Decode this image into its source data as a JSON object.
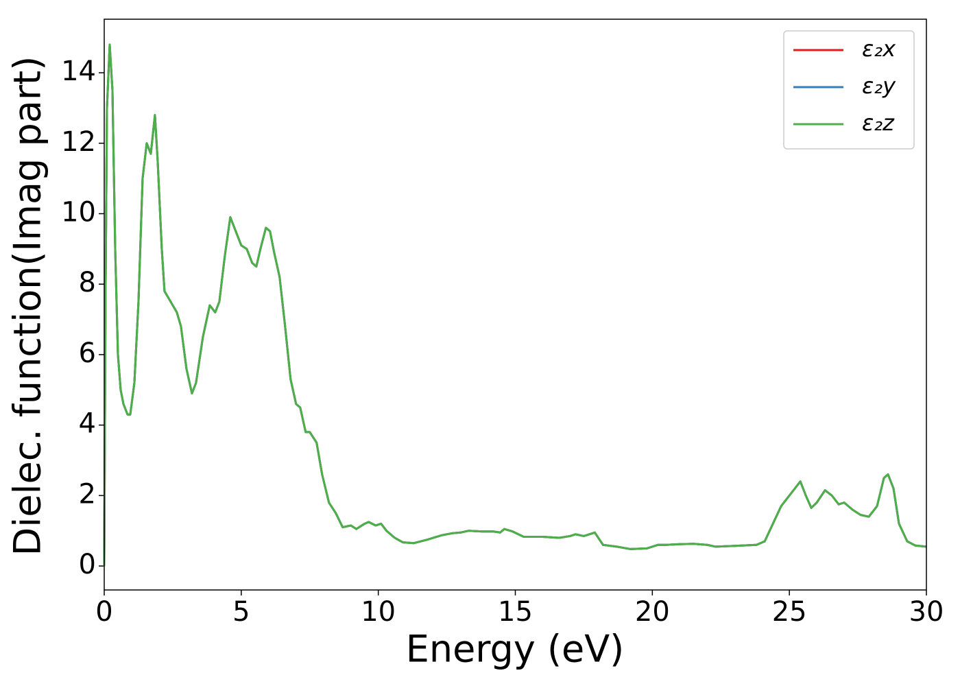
{
  "chart_data": {
    "type": "line",
    "xlabel": "Energy (eV)",
    "ylabel": "Dielec. function(Imag part)",
    "xlim": [
      0,
      30
    ],
    "ylim": [
      -0.68,
      15.52
    ],
    "xticks": [
      0,
      5,
      10,
      15,
      20,
      25,
      30
    ],
    "yticks": [
      0,
      2,
      4,
      6,
      8,
      10,
      12,
      14
    ],
    "legend": "upper right",
    "x": [
      0,
      0.05,
      0.1,
      0.2,
      0.3,
      0.4,
      0.5,
      0.6,
      0.7,
      0.85,
      0.95,
      1.1,
      1.25,
      1.4,
      1.55,
      1.7,
      1.85,
      1.95,
      2.1,
      2.2,
      2.35,
      2.5,
      2.65,
      2.8,
      3.0,
      3.2,
      3.35,
      3.6,
      3.85,
      4.05,
      4.2,
      4.4,
      4.6,
      4.8,
      5.0,
      5.2,
      5.4,
      5.55,
      5.7,
      5.9,
      6.05,
      6.2,
      6.4,
      6.6,
      6.8,
      7.0,
      7.15,
      7.35,
      7.5,
      7.75,
      7.95,
      8.2,
      8.45,
      8.7,
      9.0,
      9.2,
      9.5,
      9.65,
      9.9,
      10.1,
      10.3,
      10.6,
      10.9,
      11.3,
      11.8,
      12.3,
      12.7,
      13.0,
      13.3,
      13.8,
      14.2,
      14.45,
      14.6,
      14.9,
      15.3,
      16.0,
      16.6,
      17.0,
      17.2,
      17.5,
      17.9,
      18.2,
      18.7,
      19.2,
      19.8,
      20.2,
      20.5,
      21.0,
      21.5,
      22.0,
      22.3,
      23.0,
      23.8,
      24.1,
      24.4,
      24.7,
      25.0,
      25.4,
      25.6,
      25.8,
      26.0,
      26.3,
      26.55,
      26.8,
      27.0,
      27.3,
      27.6,
      27.9,
      28.2,
      28.45,
      28.6,
      28.8,
      29.0,
      29.3,
      29.6,
      30.0
    ],
    "series": [
      {
        "name": "ε₂x",
        "color": "#e41a1c",
        "values": [
          0,
          8,
          13,
          14.8,
          13.5,
          9,
          6,
          5,
          4.6,
          4.3,
          4.3,
          5.2,
          7.5,
          11,
          12,
          11.7,
          12.8,
          11.5,
          9,
          7.8,
          7.6,
          7.4,
          7.2,
          6.8,
          5.6,
          4.9,
          5.2,
          6.5,
          7.4,
          7.2,
          7.5,
          8.8,
          9.9,
          9.5,
          9.1,
          9.0,
          8.6,
          8.5,
          9.0,
          9.6,
          9.5,
          8.9,
          8.2,
          6.8,
          5.3,
          4.6,
          4.5,
          3.8,
          3.8,
          3.5,
          2.6,
          1.8,
          1.5,
          1.1,
          1.15,
          1.05,
          1.2,
          1.25,
          1.15,
          1.2,
          1.0,
          0.8,
          0.67,
          0.65,
          0.75,
          0.87,
          0.93,
          0.95,
          1.0,
          0.98,
          0.98,
          0.95,
          1.05,
          0.98,
          0.83,
          0.83,
          0.8,
          0.85,
          0.9,
          0.85,
          0.95,
          0.6,
          0.55,
          0.48,
          0.5,
          0.6,
          0.6,
          0.62,
          0.63,
          0.6,
          0.55,
          0.57,
          0.6,
          0.7,
          1.2,
          1.7,
          2.0,
          2.4,
          2.0,
          1.65,
          1.8,
          2.15,
          2.0,
          1.75,
          1.8,
          1.6,
          1.45,
          1.4,
          1.7,
          2.5,
          2.6,
          2.2,
          1.2,
          0.7,
          0.58,
          0.55
        ]
      },
      {
        "name": "ε₂y",
        "color": "#377eb8",
        "values": [
          0,
          8,
          13,
          14.8,
          13.5,
          9,
          6,
          5,
          4.6,
          4.3,
          4.3,
          5.2,
          7.5,
          11,
          12,
          11.7,
          12.8,
          11.5,
          9,
          7.8,
          7.6,
          7.4,
          7.2,
          6.8,
          5.6,
          4.9,
          5.2,
          6.5,
          7.4,
          7.2,
          7.5,
          8.8,
          9.9,
          9.5,
          9.1,
          9.0,
          8.6,
          8.5,
          9.0,
          9.6,
          9.5,
          8.9,
          8.2,
          6.8,
          5.3,
          4.6,
          4.5,
          3.8,
          3.8,
          3.5,
          2.6,
          1.8,
          1.5,
          1.1,
          1.15,
          1.05,
          1.2,
          1.25,
          1.15,
          1.2,
          1.0,
          0.8,
          0.67,
          0.65,
          0.75,
          0.87,
          0.93,
          0.95,
          1.0,
          0.98,
          0.98,
          0.95,
          1.05,
          0.98,
          0.83,
          0.83,
          0.8,
          0.85,
          0.9,
          0.85,
          0.95,
          0.6,
          0.55,
          0.48,
          0.5,
          0.6,
          0.6,
          0.62,
          0.63,
          0.6,
          0.55,
          0.57,
          0.6,
          0.7,
          1.2,
          1.7,
          2.0,
          2.4,
          2.0,
          1.65,
          1.8,
          2.15,
          2.0,
          1.75,
          1.8,
          1.6,
          1.45,
          1.4,
          1.7,
          2.5,
          2.6,
          2.2,
          1.2,
          0.7,
          0.58,
          0.55
        ]
      },
      {
        "name": "ε₂z",
        "color": "#4daf4a",
        "values": [
          0,
          8,
          13,
          14.8,
          13.5,
          9,
          6,
          5,
          4.6,
          4.3,
          4.3,
          5.2,
          7.5,
          11,
          12,
          11.7,
          12.8,
          11.5,
          9,
          7.8,
          7.6,
          7.4,
          7.2,
          6.8,
          5.6,
          4.9,
          5.2,
          6.5,
          7.4,
          7.2,
          7.5,
          8.8,
          9.9,
          9.5,
          9.1,
          9.0,
          8.6,
          8.5,
          9.0,
          9.6,
          9.5,
          8.9,
          8.2,
          6.8,
          5.3,
          4.6,
          4.5,
          3.8,
          3.8,
          3.5,
          2.6,
          1.8,
          1.5,
          1.1,
          1.15,
          1.05,
          1.2,
          1.25,
          1.15,
          1.2,
          1.0,
          0.8,
          0.67,
          0.65,
          0.75,
          0.87,
          0.93,
          0.95,
          1.0,
          0.98,
          0.98,
          0.95,
          1.05,
          0.98,
          0.83,
          0.83,
          0.8,
          0.85,
          0.9,
          0.85,
          0.95,
          0.6,
          0.55,
          0.48,
          0.5,
          0.6,
          0.6,
          0.62,
          0.63,
          0.6,
          0.55,
          0.57,
          0.6,
          0.7,
          1.2,
          1.7,
          2.0,
          2.4,
          2.0,
          1.65,
          1.8,
          2.15,
          2.0,
          1.75,
          1.8,
          1.6,
          1.45,
          1.4,
          1.7,
          2.5,
          2.6,
          2.2,
          1.2,
          0.7,
          0.58,
          0.55
        ]
      }
    ]
  }
}
